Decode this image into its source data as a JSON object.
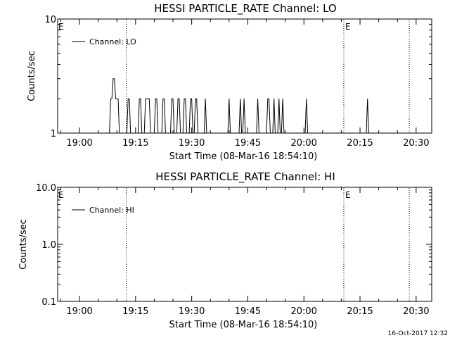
{
  "footer_date": "16-Oct-2017 12:32",
  "colors": {
    "background": "#ffffff",
    "foreground": "#000000"
  },
  "chart_data": [
    {
      "type": "line",
      "title": "HESSI PARTICLE_RATE Channel: LO",
      "xlabel": "Start Time (08-Mar-16 18:54:10)",
      "ylabel": "Counts/sec",
      "yscale": "log",
      "xlim": [
        "18:54:10",
        "20:34:10"
      ],
      "ylim": [
        1,
        10
      ],
      "xticks": [
        "19:00",
        "19:15",
        "19:30",
        "19:45",
        "20:00",
        "20:15",
        "20:30"
      ],
      "yticks": [
        {
          "value": 1,
          "label": "1"
        },
        {
          "value": 10,
          "label": "10"
        }
      ],
      "legend": {
        "placement": "top-left",
        "entries": [
          "Channel: LO"
        ]
      },
      "markers": [
        {
          "time": "19:12:30",
          "label": ""
        },
        {
          "time": "20:10:40",
          "label": "E"
        },
        {
          "time": "20:28:10",
          "label": ""
        }
      ],
      "left_edge_label": "E",
      "grid": false,
      "series": [
        {
          "name": "Channel: LO",
          "x": [
            "19:08:00",
            "19:08:20",
            "19:08:40",
            "19:09:00",
            "19:09:20",
            "19:09:40",
            "19:10:00",
            "19:10:20",
            "19:10:40",
            "19:12:40",
            "19:13:00",
            "19:13:20",
            "19:13:40",
            "19:15:40",
            "19:16:00",
            "19:16:20",
            "19:16:40",
            "19:17:20",
            "19:17:40",
            "19:18:00",
            "19:18:20",
            "19:18:40",
            "19:19:00",
            "19:20:00",
            "19:20:20",
            "19:20:40",
            "19:21:00",
            "19:22:00",
            "19:22:20",
            "19:22:40",
            "19:23:00",
            "19:24:20",
            "19:24:40",
            "19:25:00",
            "19:25:20",
            "19:26:00",
            "19:26:20",
            "19:26:40",
            "19:27:00",
            "19:27:40",
            "19:28:00",
            "19:28:20",
            "19:28:40",
            "19:29:20",
            "19:29:40",
            "19:30:00",
            "19:30:20",
            "19:30:40",
            "19:31:00",
            "19:31:20",
            "19:31:40",
            "19:33:20",
            "19:33:40",
            "19:34:00",
            "19:39:40",
            "19:40:00",
            "19:40:20",
            "19:42:40",
            "19:43:00",
            "19:43:20",
            "19:43:40",
            "19:44:00",
            "19:44:20",
            "19:47:20",
            "19:47:40",
            "19:48:00",
            "19:50:00",
            "19:50:20",
            "19:50:40",
            "19:51:00",
            "19:51:40",
            "19:52:00",
            "19:52:20",
            "19:53:00",
            "19:53:20",
            "19:53:40",
            "19:54:00",
            "19:54:20",
            "19:54:40",
            "20:00:20",
            "20:00:40",
            "20:01:00",
            "20:16:40",
            "20:17:00",
            "20:17:20"
          ],
          "y": [
            1,
            2,
            2,
            3,
            3,
            2,
            2,
            2,
            1,
            1,
            2,
            2,
            1,
            1,
            2,
            2,
            1,
            1,
            2,
            2,
            2,
            2,
            1,
            1,
            2,
            2,
            1,
            1,
            2,
            2,
            1,
            1,
            2,
            2,
            1,
            1,
            2,
            2,
            1,
            1,
            2,
            2,
            1,
            1,
            2,
            2,
            1,
            1,
            2,
            2,
            1,
            1,
            2,
            1,
            1,
            2,
            1,
            1,
            2,
            1,
            1,
            2,
            1,
            1,
            2,
            1,
            1,
            2,
            2,
            1,
            1,
            2,
            1,
            1,
            2,
            1,
            1,
            2,
            1,
            1,
            2,
            1,
            1,
            2,
            1
          ]
        }
      ]
    },
    {
      "type": "line",
      "title": "HESSI PARTICLE_RATE Channel: HI",
      "xlabel": "Start Time (08-Mar-16 18:54:10)",
      "ylabel": "Counts/sec",
      "yscale": "log",
      "xlim": [
        "18:54:10",
        "20:34:10"
      ],
      "ylim": [
        0.1,
        10
      ],
      "xticks": [
        "19:00",
        "19:15",
        "19:30",
        "19:45",
        "20:00",
        "20:15",
        "20:30"
      ],
      "yticks": [
        {
          "value": 0.1,
          "label": "0.1"
        },
        {
          "value": 1,
          "label": "1.0"
        },
        {
          "value": 10,
          "label": "10.0"
        }
      ],
      "legend": {
        "placement": "top-left",
        "entries": [
          "Channel: HI"
        ]
      },
      "markers": [
        {
          "time": "19:12:30",
          "label": ""
        },
        {
          "time": "20:10:40",
          "label": "E"
        },
        {
          "time": "20:28:10",
          "label": ""
        }
      ],
      "left_edge_label": "E",
      "grid": false,
      "series": [
        {
          "name": "Channel: HI",
          "x": [],
          "y": []
        }
      ]
    }
  ]
}
